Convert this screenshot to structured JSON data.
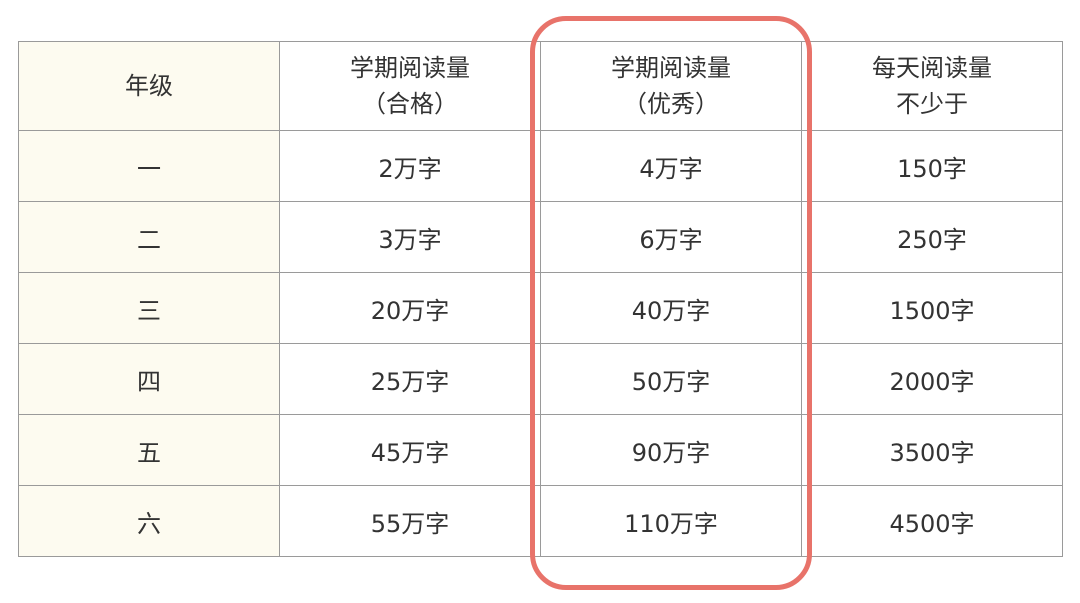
{
  "table": {
    "headers": [
      {
        "line1": "年级",
        "line2": ""
      },
      {
        "line1": "学期阅读量",
        "line2": "（合格）"
      },
      {
        "line1": "学期阅读量",
        "line2": "（优秀）"
      },
      {
        "line1": "每天阅读量",
        "line2": "不少于"
      }
    ],
    "rows": [
      [
        "一",
        "2万字",
        "4万字",
        "150字"
      ],
      [
        "二",
        "3万字",
        "6万字",
        "250字"
      ],
      [
        "三",
        "20万字",
        "40万字",
        "1500字"
      ],
      [
        "四",
        "25万字",
        "50万字",
        "2000字"
      ],
      [
        "五",
        "45万字",
        "90万字",
        "3500字"
      ],
      [
        "六",
        "55万字",
        "110万字",
        "4500字"
      ]
    ]
  },
  "colors": {
    "grade_column_bg": "#fdfbf0",
    "highlight_border": "#e8736a",
    "grid": "#9a9a9a"
  }
}
